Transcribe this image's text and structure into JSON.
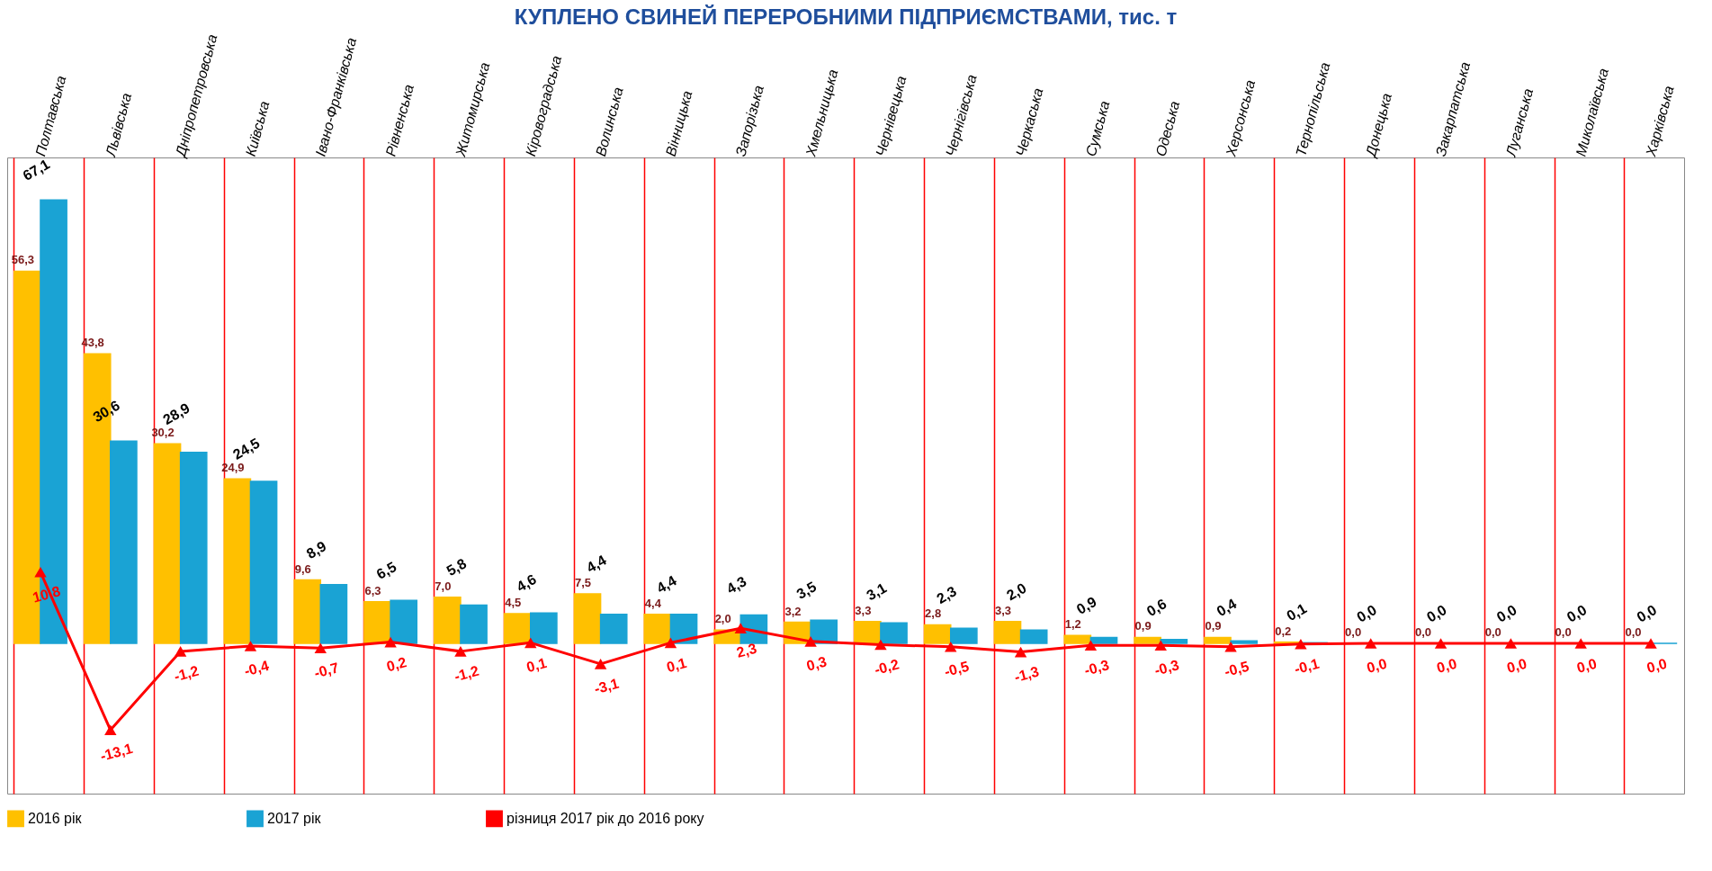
{
  "chart_data": {
    "type": "bar",
    "title": "КУПЛЕНО СВИНЕЙ ПЕРЕРОБНИМИ ПІДПРИЄМСТВАМИ, тис. т",
    "categories": [
      "Полтавська",
      "Львівська",
      "Дніпропетровська",
      "Київська",
      "Івано-Франківська",
      "Рівненська",
      "Житомирська",
      "Кіровоградська",
      "Волинська",
      "Вінницька",
      "Запорізька",
      "Хмельницька",
      "Чернівецька",
      "Чернігівська",
      "Черкаська",
      "Сумська",
      "Одеська",
      "Херсонська",
      "Тернопільська",
      "Донецька",
      "Закарпатська",
      "Луганська",
      "Миколаївська",
      "Харківська"
    ],
    "series": [
      {
        "name": "2016 рік",
        "color": "#ffc000",
        "values": [
          56.3,
          43.8,
          30.2,
          24.9,
          9.6,
          6.3,
          7.0,
          4.5,
          7.5,
          4.4,
          2.0,
          3.2,
          3.3,
          2.8,
          3.3,
          1.2,
          0.9,
          0.9,
          0.2,
          0.0,
          0.0,
          0.0,
          0.0,
          0.0
        ],
        "value_labels": [
          "56,3",
          "43,8",
          "30,2",
          "24,9",
          "9,6",
          "6,3",
          "7,0",
          "4,5",
          "7,5",
          "4,4",
          "2,0",
          "3,2",
          "3,3",
          "2,8",
          "3,3",
          "1,2",
          "0,9",
          "0,9",
          "0,2",
          "0,0",
          "0,0",
          "0,0",
          "0,0",
          "0,0"
        ]
      },
      {
        "name": "2017 рік",
        "color": "#1aa3d4",
        "values": [
          67.1,
          30.6,
          28.9,
          24.5,
          8.9,
          6.5,
          5.8,
          4.6,
          4.4,
          4.4,
          4.3,
          3.5,
          3.1,
          2.3,
          2.0,
          0.9,
          0.6,
          0.4,
          0.1,
          0.0,
          0.0,
          0.0,
          0.0,
          0.0
        ],
        "value_labels": [
          "67,1",
          "30,6",
          "28,9",
          "24,5",
          "8,9",
          "6,5",
          "5,8",
          "4,6",
          "4,4",
          "4,4",
          "4,3",
          "3,5",
          "3,1",
          "2,3",
          "2,0",
          "0,9",
          "0,6",
          "0,4",
          "0,1",
          "0,0",
          "0,0",
          "0,0",
          "0,0",
          "0,0"
        ]
      },
      {
        "name": "різниця 2017 рік до 2016 року",
        "type": "line",
        "color": "#ff0000",
        "values": [
          10.8,
          -13.1,
          -1.2,
          -0.4,
          -0.7,
          0.2,
          -1.2,
          0.1,
          -3.1,
          0.1,
          2.3,
          0.3,
          -0.2,
          -0.5,
          -1.3,
          -0.3,
          -0.3,
          -0.5,
          -0.1,
          0.0,
          0.0,
          0.0,
          0.0,
          0.0
        ],
        "value_labels": [
          "10,8",
          "-13,1",
          "-1,2",
          "-0,4",
          "-0,7",
          "0,2",
          "-1,2",
          "0,1",
          "-3,1",
          "0,1",
          "2,3",
          "0,3",
          "-0,2",
          "-0,5",
          "-1,3",
          "-0,3",
          "-0,3",
          "-0,5",
          "-0,1",
          "0,0",
          "0,0",
          "0,0",
          "0,0",
          "0,0"
        ]
      }
    ],
    "marker": "triangle",
    "grid": "x",
    "legend": "bottom"
  }
}
